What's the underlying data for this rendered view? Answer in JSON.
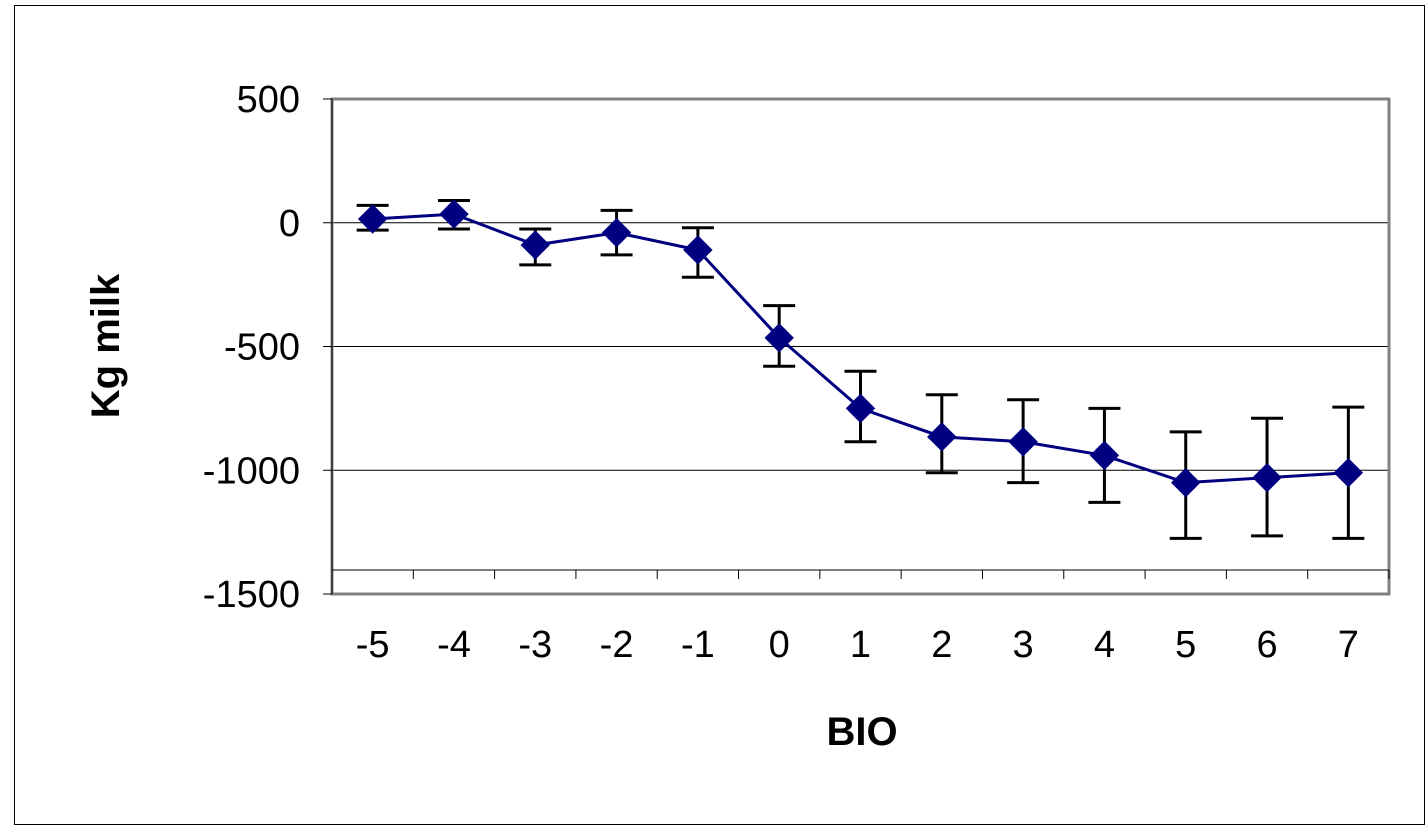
{
  "chart_data": {
    "type": "line",
    "xlabel": "BIO",
    "ylabel": "Kg milk",
    "categories": [
      "-5",
      "-4",
      "-3",
      "-2",
      "-1",
      "0",
      "1",
      "2",
      "3",
      "4",
      "5",
      "6",
      "7"
    ],
    "yticks": [
      "500",
      "0",
      "-500",
      "-1000",
      "-1500"
    ],
    "ylim": [
      -1500,
      500
    ],
    "grid": true,
    "legend": "none",
    "series": [
      {
        "values": [
          15,
          35,
          -90,
          -40,
          -110,
          -465,
          -750,
          -865,
          -885,
          -940,
          -1050,
          -1030,
          -1010
        ],
        "error_low": [
          -30,
          -25,
          -170,
          -130,
          -220,
          -580,
          -885,
          -1010,
          -1050,
          -1130,
          -1275,
          -1265,
          -1275
        ],
        "error_high": [
          70,
          90,
          -25,
          50,
          -20,
          -335,
          -600,
          -695,
          -715,
          -750,
          -845,
          -790,
          -745
        ],
        "color": "#000080"
      }
    ],
    "error_bar_color": "#000000",
    "axis_color": "#808080",
    "grid_color": "#000000"
  }
}
